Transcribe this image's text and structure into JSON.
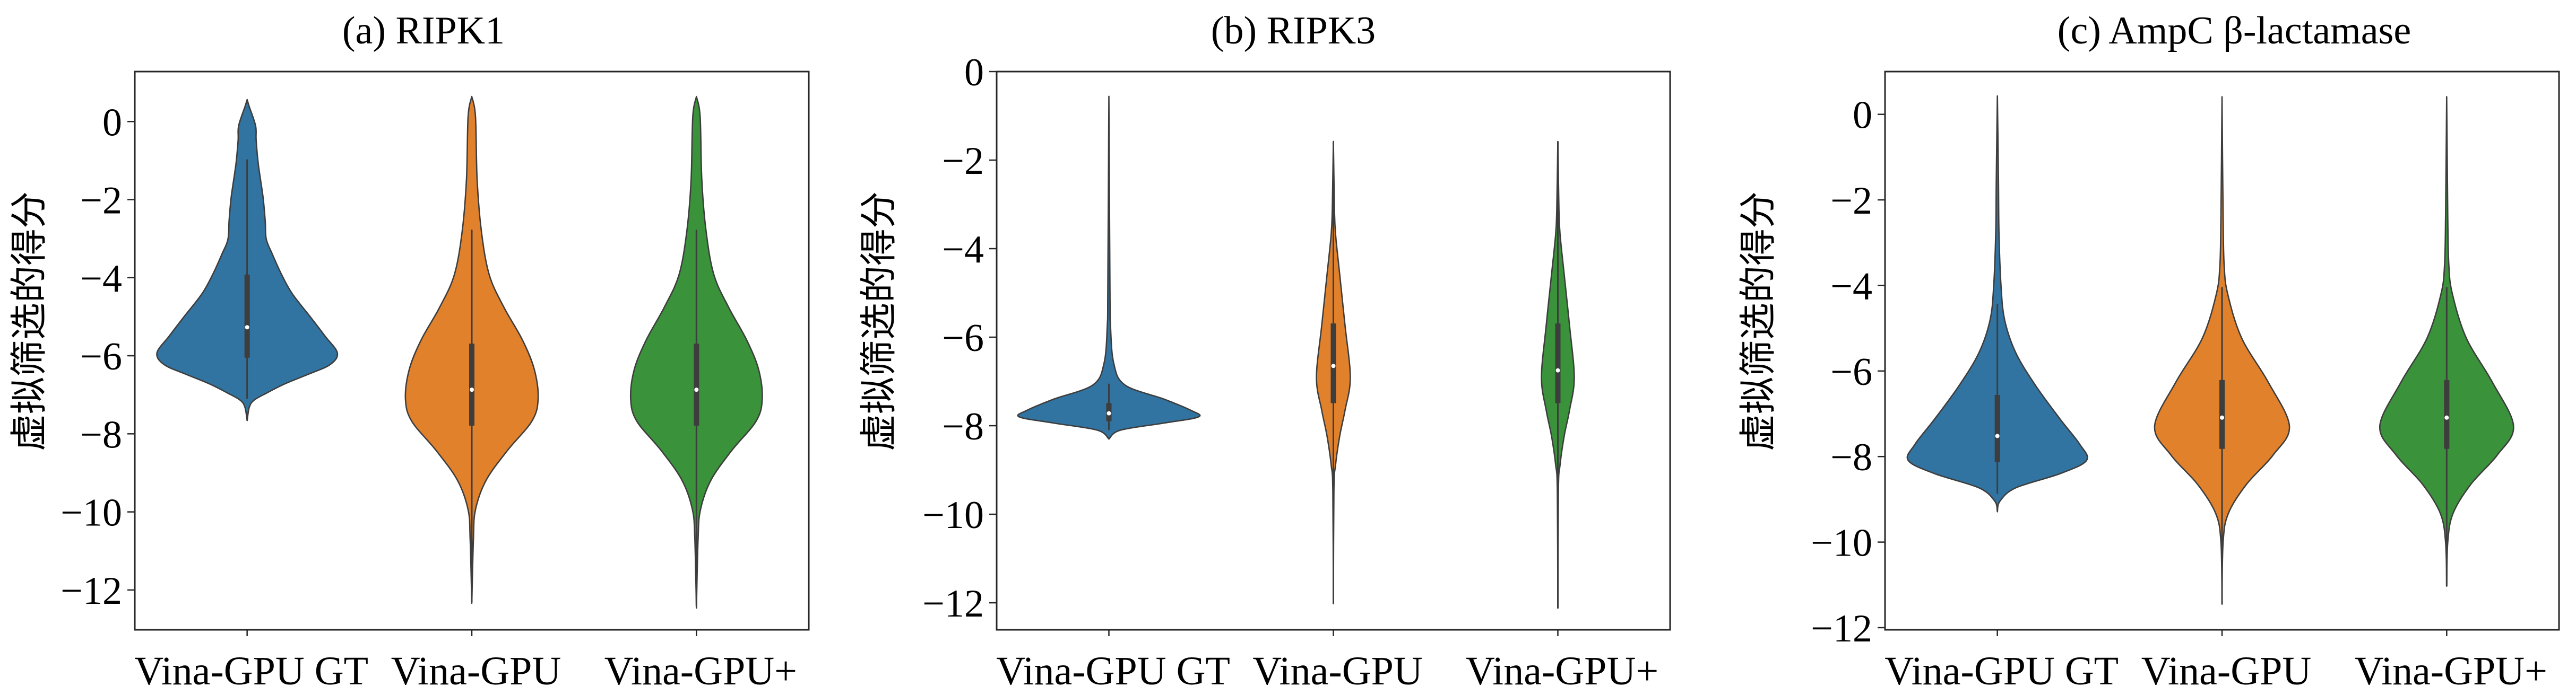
{
  "chart_data": [
    {
      "id": "a",
      "type": "violin",
      "title": "(a) RIPK1",
      "xlabel": "",
      "ylabel": "虚拟筛选的得分",
      "categories": [
        "Vina-GPU GT",
        "Vina-GPU",
        "Vina-GPU+"
      ],
      "ylim": [
        -13.02,
        1.28
      ],
      "yticks": [
        0,
        -2,
        -4,
        -6,
        -8,
        -10,
        -12
      ],
      "ytick_labels": [
        "0",
        "−2",
        "−4",
        "−6",
        "−8",
        "−10",
        "−12"
      ],
      "grid": false,
      "legend": "none",
      "series": [
        {
          "name": "Vina-GPU GT",
          "color": "#3274a1",
          "min": -7.66,
          "max": 0.56,
          "q1": -6.05,
          "median": -5.27,
          "q3": -3.92,
          "whisker_low": -7.1,
          "whisker_high": -0.97,
          "density": [
            [
              0.56,
              0
            ],
            [
              0.38,
              0.024
            ],
            [
              -0.11,
              0.094
            ],
            [
              -0.48,
              0.1
            ],
            [
              -1.09,
              0.124
            ],
            [
              -1.93,
              0.176
            ],
            [
              -2.54,
              0.2
            ],
            [
              -3.01,
              0.212
            ],
            [
              -3.38,
              0.276
            ],
            [
              -3.92,
              0.382
            ],
            [
              -4.41,
              0.5
            ],
            [
              -5.02,
              0.706
            ],
            [
              -5.5,
              0.865
            ],
            [
              -5.93,
              1.0
            ],
            [
              -6.23,
              0.918
            ],
            [
              -6.47,
              0.682
            ],
            [
              -6.72,
              0.418
            ],
            [
              -6.96,
              0.212
            ],
            [
              -7.14,
              0.076
            ],
            [
              -7.32,
              0.024
            ],
            [
              -7.66,
              0
            ]
          ]
        },
        {
          "name": "Vina-GPU",
          "color": "#e1812c",
          "min": -12.34,
          "max": 0.64,
          "q1": -7.79,
          "median": -6.87,
          "q3": -5.69,
          "whisker_low": -12.3,
          "whisker_high": -2.77,
          "density": [
            [
              0.64,
              0
            ],
            [
              0.12,
              0.041
            ],
            [
              -1.48,
              0.059
            ],
            [
              -2.8,
              0.106
            ],
            [
              -3.93,
              0.194
            ],
            [
              -4.77,
              0.359
            ],
            [
              -5.61,
              0.565
            ],
            [
              -6.36,
              0.694
            ],
            [
              -7.11,
              0.735
            ],
            [
              -7.68,
              0.665
            ],
            [
              -8.43,
              0.394
            ],
            [
              -9.19,
              0.159
            ],
            [
              -9.94,
              0.041
            ],
            [
              -10.69,
              0.018
            ],
            [
              -12.34,
              0
            ]
          ]
        },
        {
          "name": "Vina-GPU+",
          "color": "#3a923a",
          "min": -12.46,
          "max": 0.64,
          "q1": -7.79,
          "median": -6.87,
          "q3": -5.69,
          "whisker_low": -12.42,
          "whisker_high": -2.77,
          "density": [
            [
              0.64,
              0
            ],
            [
              0.12,
              0.041
            ],
            [
              -1.48,
              0.059
            ],
            [
              -2.8,
              0.106
            ],
            [
              -3.93,
              0.194
            ],
            [
              -4.77,
              0.359
            ],
            [
              -5.61,
              0.56
            ],
            [
              -6.36,
              0.69
            ],
            [
              -7.11,
              0.729
            ],
            [
              -7.68,
              0.66
            ],
            [
              -8.43,
              0.39
            ],
            [
              -9.19,
              0.16
            ],
            [
              -9.94,
              0.045
            ],
            [
              -10.69,
              0.018
            ],
            [
              -12.46,
              0
            ]
          ]
        }
      ]
    },
    {
      "id": "b",
      "type": "violin",
      "title": "(b) RIPK3",
      "xlabel": "",
      "ylabel": "虚拟筛选的得分",
      "categories": [
        "Vina-GPU GT",
        "Vina-GPU",
        "Vina-GPU+"
      ],
      "ylim": [
        -12.61,
        0
      ],
      "yticks": [
        0,
        -2,
        -4,
        -6,
        -8,
        -10,
        -12
      ],
      "ytick_labels": [
        "0",
        "−2",
        "−4",
        "−6",
        "−8",
        "−10",
        "−12"
      ],
      "grid": false,
      "legend": "none",
      "series": [
        {
          "name": "Vina-GPU GT",
          "color": "#3274a1",
          "min": -8.3,
          "max": -0.56,
          "q1": -7.9,
          "median": -7.72,
          "q3": -7.49,
          "whisker_low": -8.1,
          "whisker_high": -7.05,
          "density": [
            [
              -0.56,
              0
            ],
            [
              -4.91,
              0.012
            ],
            [
              -5.74,
              0.018
            ],
            [
              -6.58,
              0.053
            ],
            [
              -7.08,
              0.178
            ],
            [
              -7.4,
              0.615
            ],
            [
              -7.65,
              0.911
            ],
            [
              -7.8,
              1.0
            ],
            [
              -7.94,
              0.615
            ],
            [
              -8.1,
              0.13
            ],
            [
              -8.3,
              0
            ]
          ]
        },
        {
          "name": "Vina-GPU",
          "color": "#e1812c",
          "min": -12.02,
          "max": -1.58,
          "q1": -7.49,
          "median": -6.65,
          "q3": -5.69,
          "whisker_low": -12.02,
          "whisker_high": -1.58,
          "density": [
            [
              -1.58,
              0
            ],
            [
              -3.09,
              0.012
            ],
            [
              -3.67,
              0.024
            ],
            [
              -4.59,
              0.071
            ],
            [
              -5.74,
              0.13
            ],
            [
              -6.91,
              0.189
            ],
            [
              -7.65,
              0.13
            ],
            [
              -8.23,
              0.071
            ],
            [
              -8.89,
              0.024
            ],
            [
              -9.47,
              0.006
            ],
            [
              -12.02,
              0
            ]
          ]
        },
        {
          "name": "Vina-GPU+",
          "color": "#3a923a",
          "min": -12.12,
          "max": -1.58,
          "q1": -7.49,
          "median": -6.75,
          "q3": -5.69,
          "whisker_low": -12.12,
          "whisker_high": -1.58,
          "density": [
            [
              -1.58,
              0
            ],
            [
              -3.09,
              0.012
            ],
            [
              -3.67,
              0.024
            ],
            [
              -4.59,
              0.071
            ],
            [
              -5.74,
              0.13
            ],
            [
              -6.91,
              0.183
            ],
            [
              -7.65,
              0.13
            ],
            [
              -8.23,
              0.071
            ],
            [
              -8.89,
              0.024
            ],
            [
              -9.47,
              0.006
            ],
            [
              -12.12,
              0
            ]
          ]
        }
      ]
    },
    {
      "id": "c",
      "type": "violin",
      "title": "(c) AmpC β-lactamase",
      "xlabel": "",
      "ylabel": "虚拟筛选的得分",
      "categories": [
        "Vina-GPU GT",
        "Vina-GPU",
        "Vina-GPU+"
      ],
      "ylim": [
        -12.05,
        1.0
      ],
      "yticks": [
        0,
        -2,
        -4,
        -6,
        -8,
        -10,
        -12
      ],
      "ytick_labels": [
        "0",
        "−2",
        "−4",
        "−6",
        "−8",
        "−10",
        "−12"
      ],
      "grid": false,
      "legend": "none",
      "series": [
        {
          "name": "Vina-GPU GT",
          "color": "#3274a1",
          "min": -9.29,
          "max": 0.43,
          "q1": -8.13,
          "median": -7.52,
          "q3": -6.56,
          "whisker_low": -8.87,
          "whisker_high": -4.43,
          "density": [
            [
              0.43,
              0
            ],
            [
              -1.49,
              0.012
            ],
            [
              -2.77,
              0.018
            ],
            [
              -4.04,
              0.042
            ],
            [
              -4.82,
              0.083
            ],
            [
              -5.58,
              0.208
            ],
            [
              -6.34,
              0.429
            ],
            [
              -7.12,
              0.702
            ],
            [
              -7.71,
              0.923
            ],
            [
              -8.09,
              1.0
            ],
            [
              -8.4,
              0.702
            ],
            [
              -8.73,
              0.208
            ],
            [
              -9.04,
              0.03
            ],
            [
              -9.29,
              0
            ]
          ]
        },
        {
          "name": "Vina-GPU",
          "color": "#e1812c",
          "min": -11.45,
          "max": 0.41,
          "q1": -7.82,
          "median": -7.09,
          "q3": -6.21,
          "whisker_low": -11.45,
          "whisker_high": -4.04,
          "density": [
            [
              0.41,
              0
            ],
            [
              -2.34,
              0.012
            ],
            [
              -3.53,
              0.024
            ],
            [
              -4.21,
              0.065
            ],
            [
              -5.23,
              0.22
            ],
            [
              -6.26,
              0.518
            ],
            [
              -7.29,
              0.756
            ],
            [
              -7.97,
              0.571
            ],
            [
              -8.65,
              0.274
            ],
            [
              -9.33,
              0.071
            ],
            [
              -10.01,
              0.012
            ],
            [
              -11.45,
              0
            ]
          ]
        },
        {
          "name": "Vina-GPU+",
          "color": "#3a923a",
          "min": -11.03,
          "max": 0.41,
          "q1": -7.82,
          "median": -7.09,
          "q3": -6.21,
          "whisker_low": -11.03,
          "whisker_high": -4.04,
          "density": [
            [
              0.41,
              0
            ],
            [
              -2.34,
              0.012
            ],
            [
              -3.53,
              0.024
            ],
            [
              -4.21,
              0.065
            ],
            [
              -5.23,
              0.22
            ],
            [
              -6.26,
              0.512
            ],
            [
              -7.29,
              0.75
            ],
            [
              -7.97,
              0.565
            ],
            [
              -8.65,
              0.27
            ],
            [
              -9.33,
              0.071
            ],
            [
              -10.01,
              0.012
            ],
            [
              -11.03,
              0
            ]
          ]
        }
      ]
    }
  ]
}
